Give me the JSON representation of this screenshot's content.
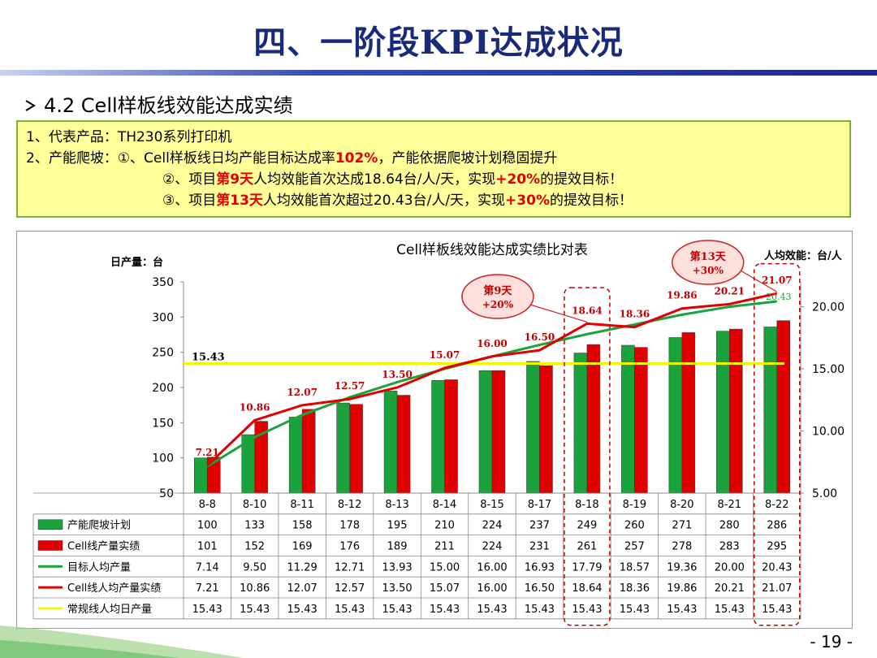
{
  "title": "四、一阶段KPI达成状况",
  "section": "4.2  Cell样板线效能达成实绩",
  "note": {
    "line1": "1、代表产品：TH230系列打印机",
    "line2_prefix": "2、产能爬坡：①、Cell样板线日均产能目标达成率",
    "line2_em": "102%",
    "line2_suffix": "，产能依据爬坡计划稳固提升",
    "line3_prefix": "②、项目",
    "line3_em1": "第9天",
    "line3_mid": "人均效能首次达成18.64台/人/天，实现",
    "line3_em2": "+20%",
    "line3_suffix": "的提效目标！",
    "line4_prefix": "③、项目",
    "line4_em1": "第13天",
    "line4_mid": "人均效能首次超过20.43台/人/天，实现",
    "line4_em2": "+30%",
    "line4_suffix": "的提效目标！"
  },
  "page_number": "- 19 -",
  "chart_data": {
    "type": "bar",
    "title": "Cell样板线效能达成实绩比对表",
    "ylabel_left": "日产量：台",
    "ylabel_right": "人均效能：台/人",
    "ylim_left": [
      50,
      350
    ],
    "yticks_left": [
      "350",
      "300",
      "250",
      "200",
      "150",
      "100",
      "50"
    ],
    "ylim_right": [
      5,
      22
    ],
    "yticks_right": [
      "20.00",
      "15.00",
      "10.00",
      "5.00"
    ],
    "categories": [
      "8-8",
      "8-10",
      "8-11",
      "8-12",
      "8-13",
      "8-14",
      "8-15",
      "8-17",
      "8-18",
      "8-19",
      "8-20",
      "8-21",
      "8-22"
    ],
    "series": [
      {
        "name": "产能爬坡计划",
        "kind": "bar",
        "axis": "left",
        "color": "#1aa33c",
        "values": [
          100,
          133,
          158,
          178,
          195,
          210,
          224,
          237,
          249,
          260,
          271,
          280,
          286
        ]
      },
      {
        "name": "Cell线产量实绩",
        "kind": "bar",
        "axis": "left",
        "color": "#e00000",
        "values": [
          101,
          152,
          169,
          176,
          189,
          211,
          224,
          231,
          261,
          257,
          278,
          283,
          295
        ]
      },
      {
        "name": "目标人均产量",
        "kind": "line",
        "axis": "right",
        "color": "#1aa33c",
        "values": [
          7.14,
          9.5,
          11.29,
          12.71,
          13.93,
          15.0,
          16.0,
          16.93,
          17.79,
          18.57,
          19.36,
          20.0,
          20.43
        ]
      },
      {
        "name": "Cell线人均产量实绩",
        "kind": "line",
        "axis": "right",
        "color": "#e00000",
        "values": [
          7.21,
          10.86,
          12.07,
          12.57,
          13.5,
          15.07,
          16.0,
          16.5,
          18.64,
          18.36,
          19.86,
          20.21,
          21.07
        ]
      },
      {
        "name": "常规线人均日产量",
        "kind": "line",
        "axis": "right",
        "color": "#f5f500",
        "values": [
          15.43,
          15.43,
          15.43,
          15.43,
          15.43,
          15.43,
          15.43,
          15.43,
          15.43,
          15.43,
          15.43,
          15.43,
          15.43
        ]
      }
    ],
    "point_labels": [
      "7.21",
      "10.86",
      "12.07",
      "12.57",
      "13.50",
      "15.07",
      "16.00",
      "16.50",
      "18.64",
      "18.36",
      "19.86",
      "20.21",
      "21.07"
    ],
    "baseline_label": "15.43",
    "end_label_green": "20.43",
    "table": {
      "rows": [
        [
          "100",
          "133",
          "158",
          "178",
          "195",
          "210",
          "224",
          "237",
          "249",
          "260",
          "271",
          "280",
          "286"
        ],
        [
          "101",
          "152",
          "169",
          "176",
          "189",
          "211",
          "224",
          "231",
          "261",
          "257",
          "278",
          "283",
          "295"
        ],
        [
          "7.14",
          "9.50",
          "11.29",
          "12.71",
          "13.93",
          "15.00",
          "16.00",
          "16.93",
          "17.79",
          "18.57",
          "19.36",
          "20.00",
          "20.43"
        ],
        [
          "7.21",
          "10.86",
          "12.07",
          "12.57",
          "13.50",
          "15.07",
          "16.00",
          "16.50",
          "18.64",
          "18.36",
          "19.86",
          "20.21",
          "21.07"
        ],
        [
          "15.43",
          "15.43",
          "15.43",
          "15.43",
          "15.43",
          "15.43",
          "15.43",
          "15.43",
          "15.43",
          "15.43",
          "15.43",
          "15.43",
          "15.43"
        ]
      ]
    },
    "callouts": [
      {
        "line1": "第9天",
        "line2": "+20%",
        "category": "8-18"
      },
      {
        "line1": "第13天",
        "line2": "+30%",
        "category": "8-22"
      }
    ],
    "highlight_categories": [
      "8-18",
      "8-22"
    ]
  }
}
